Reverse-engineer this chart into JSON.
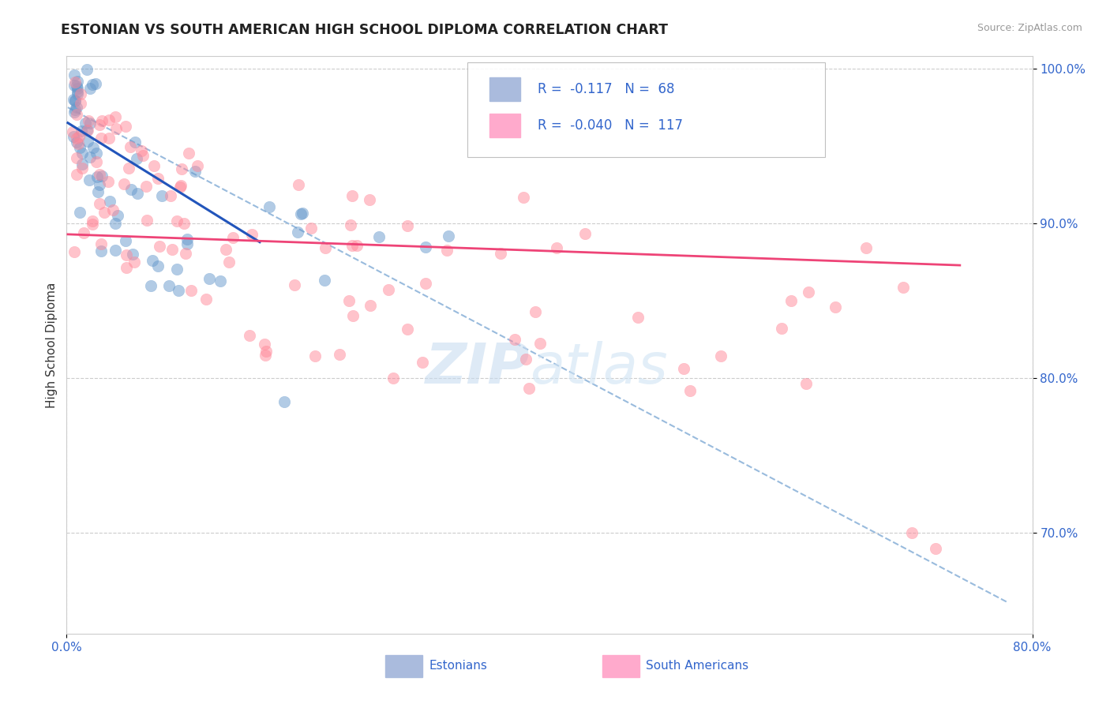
{
  "title": "ESTONIAN VS SOUTH AMERICAN HIGH SCHOOL DIPLOMA CORRELATION CHART",
  "source_text": "Source: ZipAtlas.com",
  "ylabel_text": "High School Diploma",
  "xlim": [
    0.0,
    0.8
  ],
  "ylim": [
    0.635,
    1.008
  ],
  "xtick_labels": [
    "0.0%",
    "80.0%"
  ],
  "xtick_positions": [
    0.0,
    0.8
  ],
  "ytick_labels": [
    "70.0%",
    "80.0%",
    "90.0%",
    "100.0%"
  ],
  "ytick_positions": [
    0.7,
    0.8,
    0.9,
    1.0
  ],
  "r_estonian": -0.117,
  "n_estonian": 68,
  "r_south_american": -0.04,
  "n_south_american": 117,
  "estonian_color": "#6699CC",
  "south_american_color": "#FF8899",
  "trendline_blue": "#2255BB",
  "trendline_pink": "#EE4477",
  "trendline_dashed": "#99BBDD",
  "background_color": "#FFFFFF",
  "grid_color": "#CCCCCC",
  "estonian_line": {
    "x0": 0.001,
    "y0": 0.965,
    "x1": 0.16,
    "y1": 0.888
  },
  "sa_line": {
    "x0": 0.001,
    "y0": 0.893,
    "x1": 0.74,
    "y1": 0.873
  },
  "dashed_line": {
    "x0": 0.001,
    "y0": 0.975,
    "x1": 0.78,
    "y1": 0.655
  }
}
